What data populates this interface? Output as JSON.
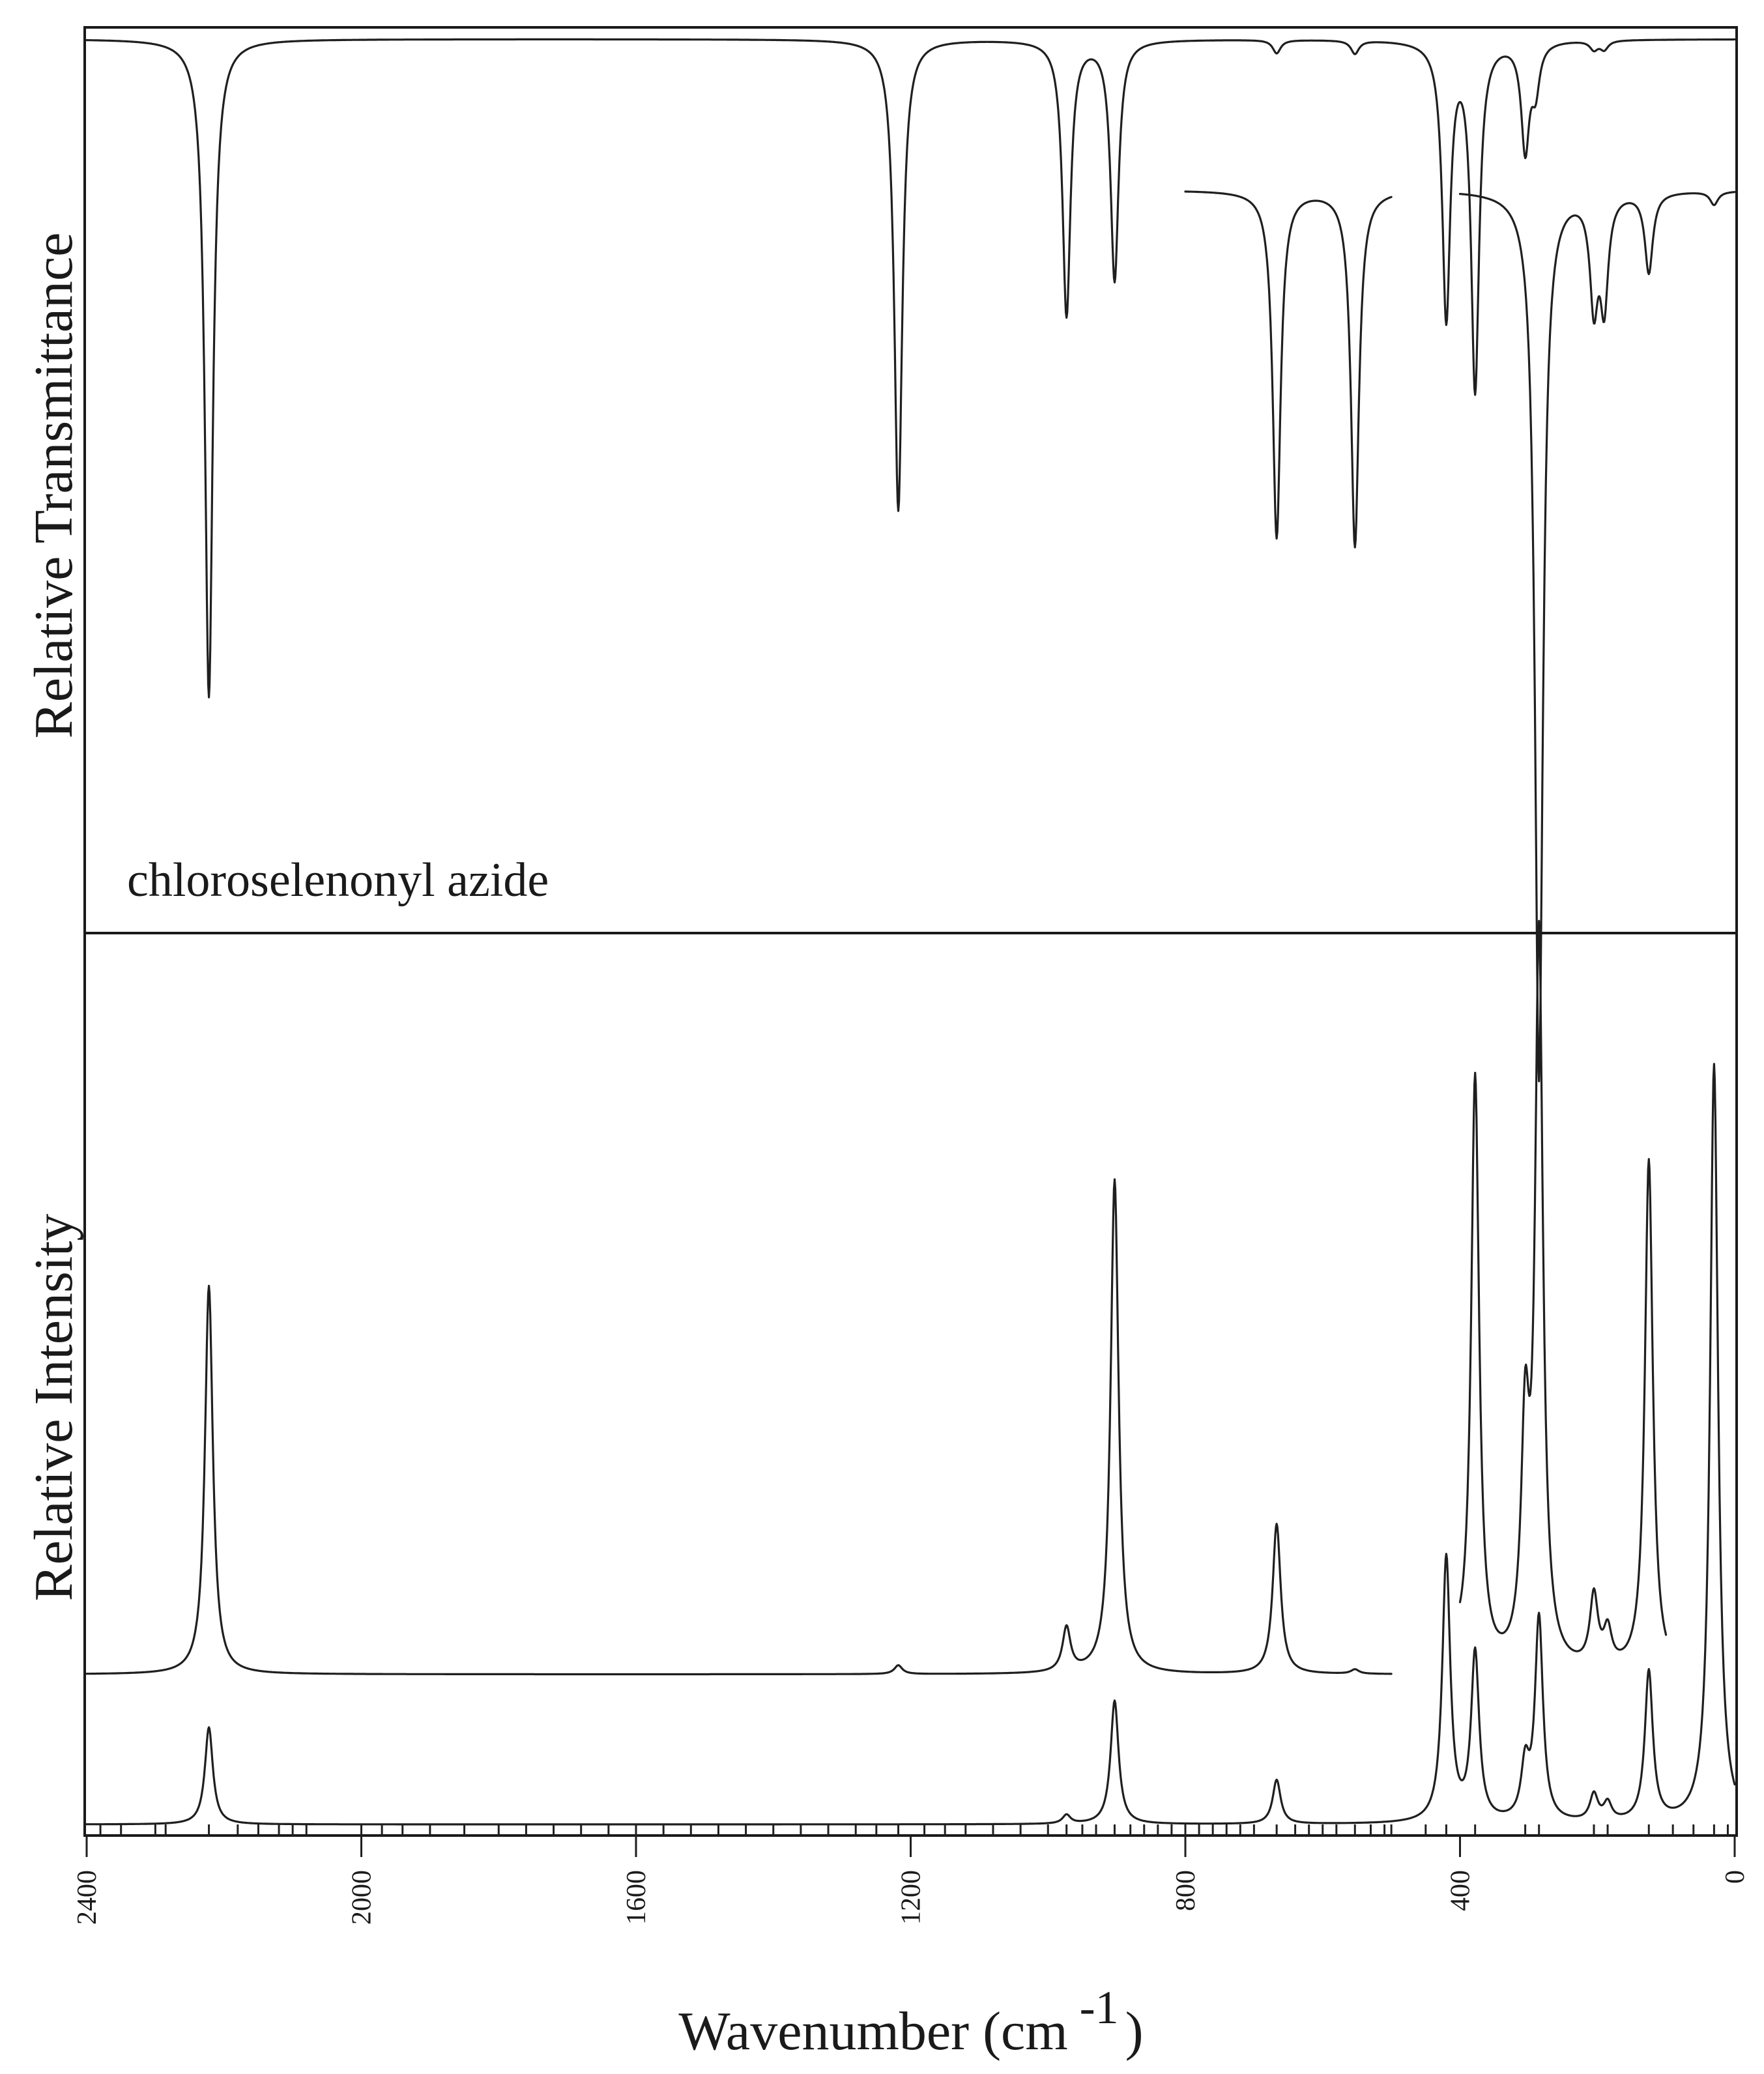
{
  "chart_data": [
    {
      "type": "line",
      "panel": "top",
      "compound_label": "chloroselenonyl azide",
      "ylabel": "Relative Transmittance",
      "xlim": [
        2400,
        0
      ],
      "series": [
        {
          "range": [
            2400,
            0
          ],
          "baseline": 1.0,
          "bands": [
            {
              "x": 2222,
              "depth": 0.74
            },
            {
              "x": 1218,
              "depth": 0.53
            },
            {
              "x": 973,
              "depth": 0.31
            },
            {
              "x": 903,
              "depth": 0.27
            },
            {
              "x": 667,
              "depth": 0.015
            },
            {
              "x": 553,
              "depth": 0.015
            },
            {
              "x": 420,
              "depth": 0.31
            },
            {
              "x": 378,
              "depth": 0.39
            },
            {
              "x": 305,
              "depth": 0.12
            },
            {
              "x": 290,
              "depth": 0.05
            },
            {
              "x": 205,
              "depth": 0.01
            },
            {
              "x": 190,
              "depth": 0.01
            }
          ]
        },
        {
          "range": [
            800,
            500
          ],
          "baseline": 0.83,
          "bands": [
            {
              "x": 667,
              "depth": 0.39
            },
            {
              "x": 553,
              "depth": 0.4
            }
          ]
        },
        {
          "range": [
            400,
            0
          ],
          "baseline": 0.83,
          "bands": [
            {
              "x": 285,
              "depth": 1.0
            },
            {
              "x": 205,
              "depth": 0.12
            },
            {
              "x": 190,
              "depth": 0.12
            },
            {
              "x": 125,
              "depth": 0.09
            },
            {
              "x": 30,
              "depth": 0.015
            }
          ]
        }
      ]
    },
    {
      "type": "line",
      "panel": "bottom",
      "ylabel": "Relative Intensity",
      "xlabel_main": "Wavenumber (cm",
      "xlabel_exponent": "-1",
      "xlabel_close": ")",
      "xlim": [
        2400,
        0
      ],
      "xticks": [
        2400,
        2000,
        1600,
        1200,
        800,
        400,
        0
      ],
      "series": [
        {
          "range": [
            2400,
            500
          ],
          "offset": 0.17,
          "bands": [
            {
              "x": 2222,
              "height": 0.44
            },
            {
              "x": 1218,
              "height": 0.01
            },
            {
              "x": 973,
              "height": 0.05
            },
            {
              "x": 903,
              "height": 0.56
            },
            {
              "x": 667,
              "height": 0.17
            },
            {
              "x": 553,
              "height": 0.005
            }
          ]
        },
        {
          "range": [
            400,
            100
          ],
          "offset": 0.17,
          "bands": [
            {
              "x": 420,
              "height": 0.14
            },
            {
              "x": 378,
              "height": 0.67
            },
            {
              "x": 305,
              "height": 0.25
            },
            {
              "x": 285,
              "height": 0.82
            },
            {
              "x": 205,
              "height": 0.08
            },
            {
              "x": 185,
              "height": 0.04
            },
            {
              "x": 125,
              "height": 0.58
            }
          ]
        },
        {
          "range": [
            2400,
            0
          ],
          "offset": 0.0,
          "bands": [
            {
              "x": 2222,
              "height": 0.11
            },
            {
              "x": 973,
              "height": 0.01
            },
            {
              "x": 903,
              "height": 0.14
            },
            {
              "x": 667,
              "height": 0.05
            },
            {
              "x": 420,
              "height": 0.3
            },
            {
              "x": 378,
              "height": 0.19
            },
            {
              "x": 305,
              "height": 0.06
            },
            {
              "x": 285,
              "height": 0.23
            },
            {
              "x": 205,
              "height": 0.03
            },
            {
              "x": 185,
              "height": 0.02
            },
            {
              "x": 125,
              "height": 0.17
            },
            {
              "x": 30,
              "height": 0.86
            }
          ]
        }
      ],
      "stick_positions": [
        2380,
        2350,
        2300,
        2285,
        2222,
        2180,
        2150,
        2120,
        2100,
        2080,
        2000,
        1970,
        1940,
        1900,
        1850,
        1800,
        1760,
        1720,
        1680,
        1640,
        1600,
        1560,
        1520,
        1480,
        1440,
        1400,
        1360,
        1320,
        1280,
        1250,
        1218,
        1180,
        1150,
        1120,
        1080,
        1040,
        1000,
        973,
        950,
        930,
        903,
        880,
        860,
        840,
        820,
        800,
        780,
        760,
        740,
        720,
        700,
        667,
        640,
        620,
        600,
        580,
        553,
        530,
        510,
        500,
        450,
        420,
        378,
        305,
        285,
        205,
        185,
        125,
        90,
        60,
        30,
        10
      ]
    }
  ]
}
